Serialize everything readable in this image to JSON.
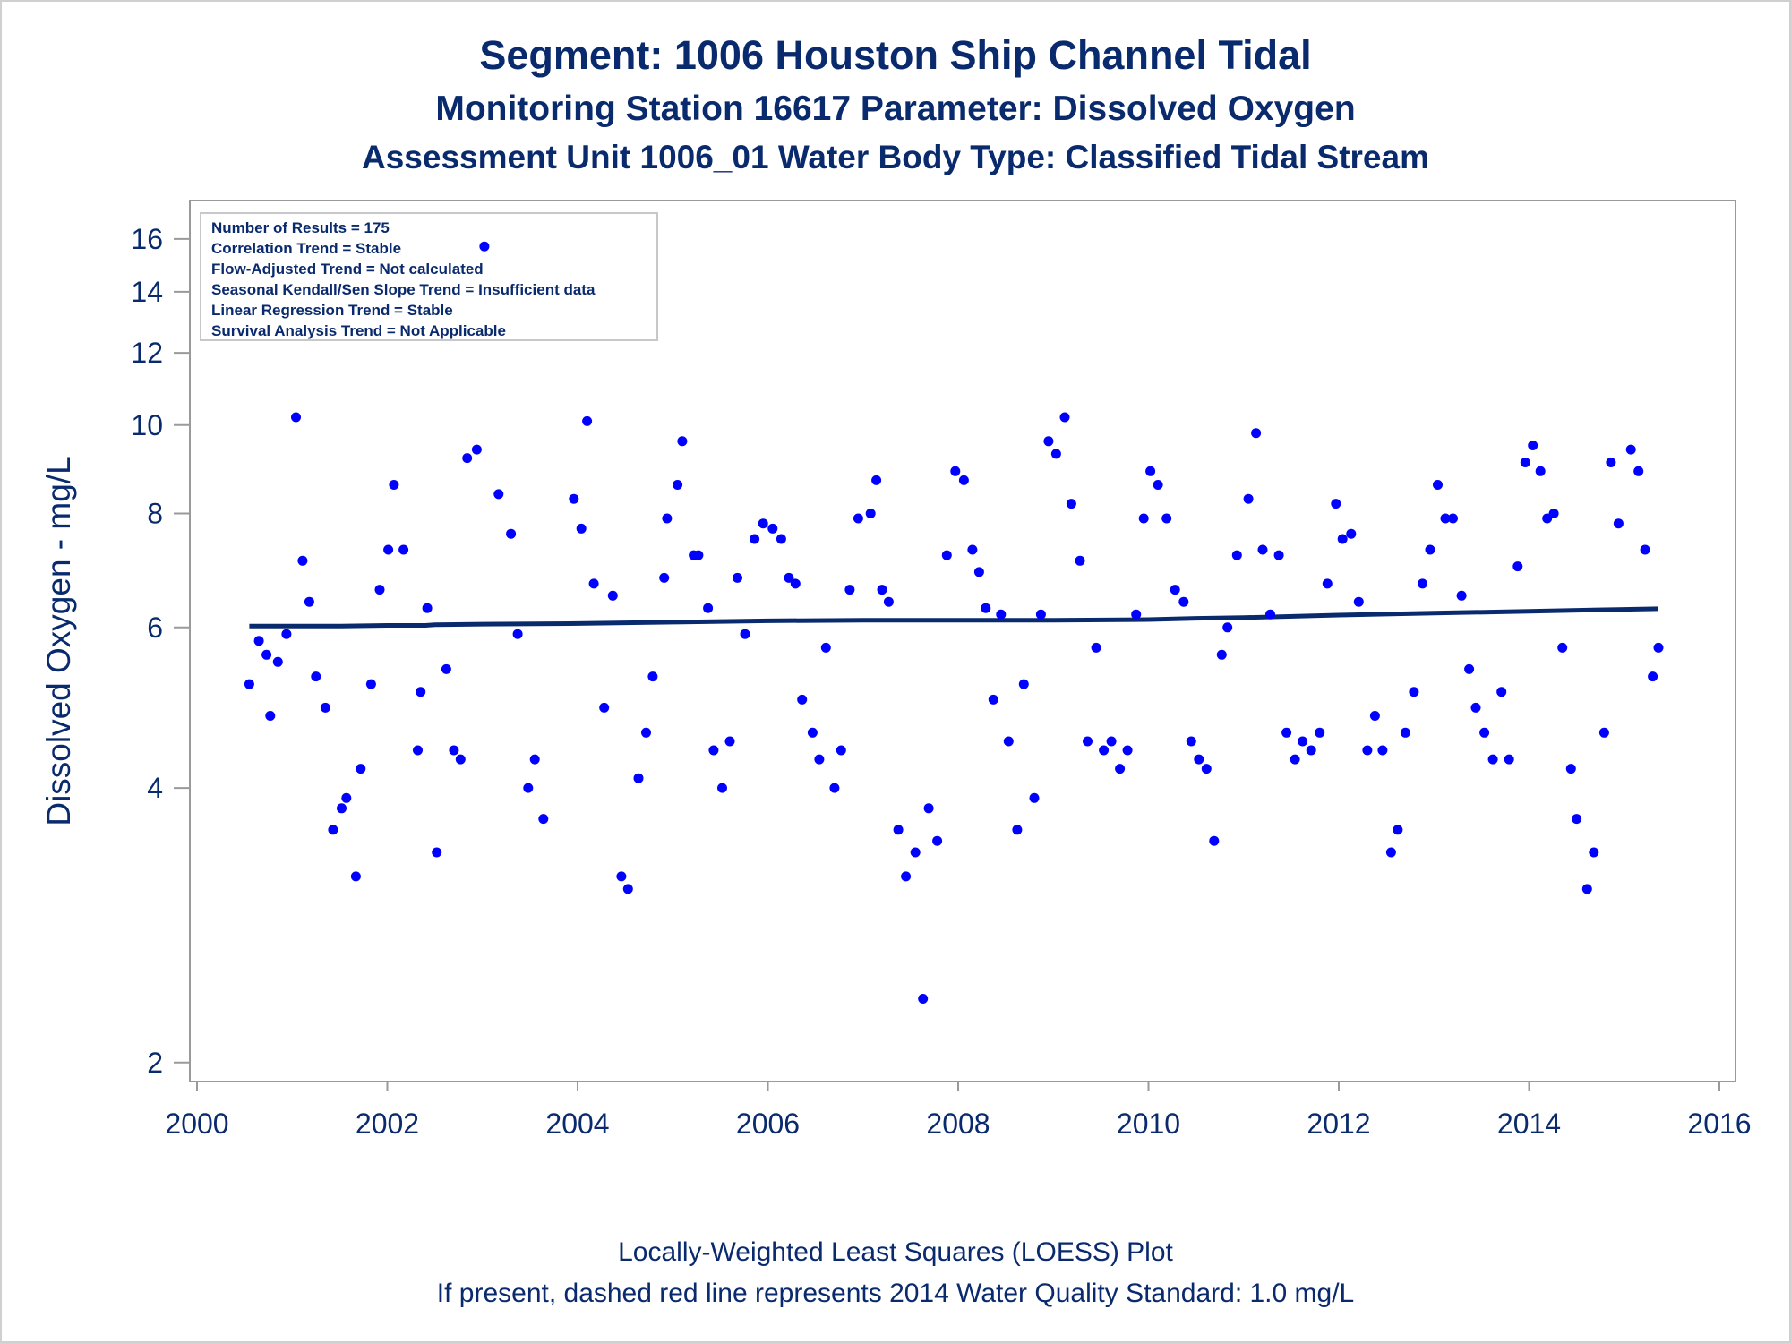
{
  "titles": {
    "line1": "Segment: 1006  Houston Ship Channel Tidal",
    "line2": "Monitoring Station 16617 Parameter: Dissolved Oxygen",
    "line3": "Assessment Unit 1006_01   Water Body Type: Classified Tidal Stream"
  },
  "footnotes": {
    "line1": "Locally-Weighted Least Squares (LOESS) Plot",
    "line2": "If present, dashed red line represents 2014 Water Quality Standard: 1.0 mg/L"
  },
  "colors": {
    "text": "#0a2a6e",
    "points": "#0000ff",
    "trend": "#0a2a6e",
    "axis": "#9a9a9a"
  },
  "chart_data": {
    "type": "scatter",
    "title": "Segment: 1006  Houston Ship Channel Tidal",
    "xlabel": "",
    "ylabel": "Dissolved Oxygen - mg/L",
    "yscale": "log",
    "xlim": [
      2000,
      2016
    ],
    "ylim": [
      1.95,
      17
    ],
    "xticks": [
      "2000",
      "2002",
      "2004",
      "2006",
      "2008",
      "2010",
      "2012",
      "2014",
      "2016"
    ],
    "yticks": [
      "2",
      "4",
      "6",
      "8",
      "10",
      "12",
      "14",
      "16"
    ],
    "grid": false,
    "legend": "none",
    "annotations": [
      "Number of Results = 175",
      "Correlation Trend = Stable",
      "Flow-Adjusted Trend = Not calculated",
      "Seasonal Kendall/Sen Slope Trend = Insufficient data",
      "Linear Regression Trend = Stable",
      "Survival Analysis Trend = Not Applicable"
    ],
    "series": [
      {
        "kind": "points",
        "points": [
          [
            2000.55,
            5.2
          ],
          [
            2000.65,
            5.8
          ],
          [
            2000.73,
            5.6
          ],
          [
            2000.77,
            4.8
          ],
          [
            2000.85,
            5.5
          ],
          [
            2000.94,
            5.9
          ],
          [
            2001.04,
            10.2
          ],
          [
            2001.11,
            7.1
          ],
          [
            2001.18,
            6.4
          ],
          [
            2001.25,
            5.3
          ],
          [
            2001.35,
            4.9
          ],
          [
            2001.43,
            3.6
          ],
          [
            2001.52,
            3.8
          ],
          [
            2001.57,
            3.9
          ],
          [
            2001.67,
            3.2
          ],
          [
            2001.72,
            4.2
          ],
          [
            2001.83,
            5.2
          ],
          [
            2001.92,
            6.6
          ],
          [
            2002.01,
            7.3
          ],
          [
            2002.07,
            8.6
          ],
          [
            2002.17,
            7.3
          ],
          [
            2002.32,
            4.4
          ],
          [
            2002.35,
            5.1
          ],
          [
            2002.42,
            6.3
          ],
          [
            2002.52,
            3.4
          ],
          [
            2002.62,
            5.4
          ],
          [
            2002.7,
            4.4
          ],
          [
            2002.77,
            4.3
          ],
          [
            2002.84,
            9.2
          ],
          [
            2002.94,
            9.4
          ],
          [
            2003.02,
            15.7
          ],
          [
            2003.17,
            8.4
          ],
          [
            2003.3,
            7.6
          ],
          [
            2003.37,
            5.9
          ],
          [
            2003.48,
            4.0
          ],
          [
            2003.55,
            4.3
          ],
          [
            2003.64,
            3.7
          ],
          [
            2003.96,
            8.3
          ],
          [
            2004.04,
            7.7
          ],
          [
            2004.1,
            10.1
          ],
          [
            2004.17,
            6.7
          ],
          [
            2004.28,
            4.9
          ],
          [
            2004.37,
            6.5
          ],
          [
            2004.46,
            3.2
          ],
          [
            2004.53,
            3.1
          ],
          [
            2004.64,
            4.1
          ],
          [
            2004.72,
            4.6
          ],
          [
            2004.79,
            5.3
          ],
          [
            2004.91,
            6.8
          ],
          [
            2004.94,
            7.9
          ],
          [
            2005.05,
            8.6
          ],
          [
            2005.1,
            9.6
          ],
          [
            2005.22,
            7.2
          ],
          [
            2005.27,
            7.2
          ],
          [
            2005.37,
            6.3
          ],
          [
            2005.43,
            4.4
          ],
          [
            2005.52,
            4.0
          ],
          [
            2005.6,
            4.5
          ],
          [
            2005.68,
            6.8
          ],
          [
            2005.76,
            5.9
          ],
          [
            2005.86,
            7.5
          ],
          [
            2005.95,
            7.8
          ],
          [
            2006.05,
            7.7
          ],
          [
            2006.14,
            7.5
          ],
          [
            2006.22,
            6.8
          ],
          [
            2006.29,
            6.7
          ],
          [
            2006.36,
            5.0
          ],
          [
            2006.47,
            4.6
          ],
          [
            2006.54,
            4.3
          ],
          [
            2006.61,
            5.7
          ],
          [
            2006.7,
            4.0
          ],
          [
            2006.77,
            4.4
          ],
          [
            2006.86,
            6.6
          ],
          [
            2006.95,
            7.9
          ],
          [
            2007.08,
            8.0
          ],
          [
            2007.14,
            8.7
          ],
          [
            2007.2,
            6.6
          ],
          [
            2007.27,
            6.4
          ],
          [
            2007.37,
            3.6
          ],
          [
            2007.45,
            3.2
          ],
          [
            2007.55,
            3.4
          ],
          [
            2007.63,
            2.35
          ],
          [
            2007.69,
            3.8
          ],
          [
            2007.78,
            3.5
          ],
          [
            2007.88,
            7.2
          ],
          [
            2007.97,
            8.9
          ],
          [
            2008.06,
            8.7
          ],
          [
            2008.15,
            7.3
          ],
          [
            2008.22,
            6.9
          ],
          [
            2008.29,
            6.3
          ],
          [
            2008.37,
            5.0
          ],
          [
            2008.45,
            6.2
          ],
          [
            2008.53,
            4.5
          ],
          [
            2008.62,
            3.6
          ],
          [
            2008.69,
            5.2
          ],
          [
            2008.8,
            3.9
          ],
          [
            2008.87,
            6.2
          ],
          [
            2008.95,
            9.6
          ],
          [
            2009.03,
            9.3
          ],
          [
            2009.12,
            10.2
          ],
          [
            2009.19,
            8.2
          ],
          [
            2009.28,
            7.1
          ],
          [
            2009.36,
            4.5
          ],
          [
            2009.45,
            5.7
          ],
          [
            2009.53,
            4.4
          ],
          [
            2009.61,
            4.5
          ],
          [
            2009.7,
            4.2
          ],
          [
            2009.78,
            4.4
          ],
          [
            2009.87,
            6.2
          ],
          [
            2009.95,
            7.9
          ],
          [
            2010.02,
            8.9
          ],
          [
            2010.1,
            8.6
          ],
          [
            2010.19,
            7.9
          ],
          [
            2010.28,
            6.6
          ],
          [
            2010.37,
            6.4
          ],
          [
            2010.45,
            4.5
          ],
          [
            2010.53,
            4.3
          ],
          [
            2010.61,
            4.2
          ],
          [
            2010.69,
            3.5
          ],
          [
            2010.77,
            5.6
          ],
          [
            2010.83,
            6.0
          ],
          [
            2010.93,
            7.2
          ],
          [
            2011.05,
            8.3
          ],
          [
            2011.13,
            9.8
          ],
          [
            2011.2,
            7.3
          ],
          [
            2011.28,
            6.2
          ],
          [
            2011.37,
            7.2
          ],
          [
            2011.45,
            4.6
          ],
          [
            2011.54,
            4.3
          ],
          [
            2011.62,
            4.5
          ],
          [
            2011.71,
            4.4
          ],
          [
            2011.8,
            4.6
          ],
          [
            2011.88,
            6.7
          ],
          [
            2011.97,
            8.2
          ],
          [
            2012.04,
            7.5
          ],
          [
            2012.13,
            7.6
          ],
          [
            2012.21,
            6.4
          ],
          [
            2012.3,
            4.4
          ],
          [
            2012.38,
            4.8
          ],
          [
            2012.46,
            4.4
          ],
          [
            2012.55,
            3.4
          ],
          [
            2012.62,
            3.6
          ],
          [
            2012.7,
            4.6
          ],
          [
            2012.79,
            5.1
          ],
          [
            2012.88,
            6.7
          ],
          [
            2012.96,
            7.3
          ],
          [
            2013.04,
            8.6
          ],
          [
            2013.12,
            7.9
          ],
          [
            2013.2,
            7.9
          ],
          [
            2013.29,
            6.5
          ],
          [
            2013.37,
            5.4
          ],
          [
            2013.44,
            4.9
          ],
          [
            2013.53,
            4.6
          ],
          [
            2013.62,
            4.3
          ],
          [
            2013.71,
            5.1
          ],
          [
            2013.79,
            4.3
          ],
          [
            2013.88,
            7.0
          ],
          [
            2013.96,
            9.1
          ],
          [
            2014.04,
            9.5
          ],
          [
            2014.12,
            8.9
          ],
          [
            2014.19,
            7.9
          ],
          [
            2014.26,
            8.0
          ],
          [
            2014.35,
            5.7
          ],
          [
            2014.44,
            4.2
          ],
          [
            2014.5,
            3.7
          ],
          [
            2014.61,
            3.1
          ],
          [
            2014.68,
            3.4
          ],
          [
            2014.79,
            4.6
          ],
          [
            2014.86,
            9.1
          ],
          [
            2014.94,
            7.8
          ],
          [
            2015.07,
            9.4
          ],
          [
            2015.15,
            8.9
          ],
          [
            2015.22,
            7.3
          ],
          [
            2015.3,
            5.3
          ],
          [
            2015.36,
            5.7
          ]
        ]
      },
      {
        "kind": "loess",
        "x": [
          2000.55,
          2001.5,
          2002.0,
          2002.4,
          2002.5,
          2003.0,
          2004.0,
          2005.0,
          2006.0,
          2007.0,
          2008.0,
          2009.0,
          2010.0,
          2010.5,
          2011.0,
          2012.0,
          2013.0,
          2014.0,
          2015.0,
          2015.36
        ],
        "values": [
          6.02,
          6.02,
          6.03,
          6.03,
          6.04,
          6.05,
          6.06,
          6.08,
          6.1,
          6.11,
          6.11,
          6.11,
          6.12,
          6.14,
          6.15,
          6.19,
          6.22,
          6.25,
          6.28,
          6.29
        ]
      }
    ]
  }
}
